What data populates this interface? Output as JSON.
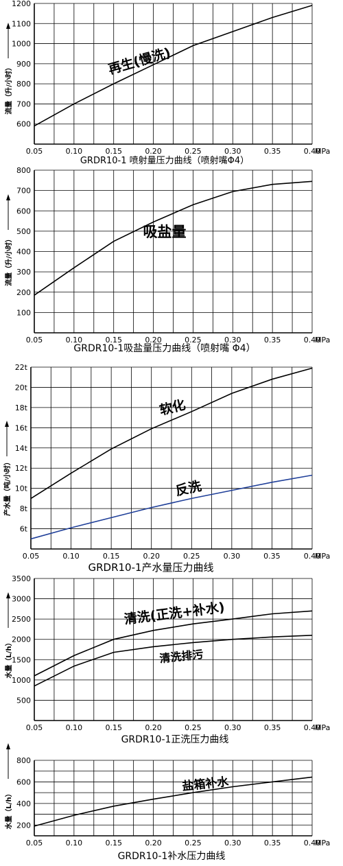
{
  "chart_data": [
    {
      "type": "line",
      "title": "GRDR10-1 喷射量压力曲线（喷射嘴Φ4）",
      "ylabel": "流量（升/小时）",
      "xlabel": "MPa",
      "xlim": [
        0.05,
        0.4
      ],
      "ylim": [
        500,
        1200
      ],
      "x_ticks": [
        "0.05",
        "0.10",
        "0.15",
        "0.20",
        "0.25",
        "0.30",
        "0.35",
        "0.40"
      ],
      "y_ticks": [
        "600",
        "700",
        "800",
        "900",
        "1000",
        "1100",
        "1200"
      ],
      "series": [
        {
          "name": "再生(慢洗)",
          "color": "#000000",
          "x": [
            0.05,
            0.1,
            0.15,
            0.2,
            0.25,
            0.3,
            0.35,
            0.4
          ],
          "y": [
            590,
            700,
            800,
            895,
            990,
            1060,
            1130,
            1190
          ]
        }
      ]
    },
    {
      "type": "line",
      "title": "GRDR10-1吸盐量压力曲线（喷射嘴 Φ4）",
      "ylabel": "流量（升/小时）",
      "xlabel": "MPa",
      "xlim": [
        0.05,
        0.4
      ],
      "ylim": [
        0,
        800
      ],
      "x_ticks": [
        "0.05",
        "0.10",
        "0.15",
        "0.20",
        "0.25",
        "0.30",
        "0.35",
        "0.40"
      ],
      "y_ticks": [
        "100",
        "200",
        "300",
        "400",
        "500",
        "600",
        "700",
        "800"
      ],
      "series": [
        {
          "name": "吸盐量",
          "color": "#000000",
          "x": [
            0.05,
            0.1,
            0.15,
            0.2,
            0.25,
            0.3,
            0.35,
            0.4
          ],
          "y": [
            185,
            320,
            450,
            545,
            630,
            695,
            730,
            745
          ]
        }
      ]
    },
    {
      "type": "line",
      "title": "GRDR10-1产水量压力曲线",
      "ylabel": "产水量（吨/小时）",
      "xlabel": "MPa",
      "xlim": [
        0.05,
        0.4
      ],
      "ylim": [
        4,
        22
      ],
      "x_ticks": [
        "0.05",
        "0.10",
        "0.15",
        "0.20",
        "0.25",
        "0.30",
        "0.35",
        "0.40"
      ],
      "y_ticks": [
        "6t",
        "8t",
        "10t",
        "12t",
        "14t",
        "16t",
        "18t",
        "20t",
        "22t"
      ],
      "series": [
        {
          "name": "软化",
          "color": "#000000",
          "x": [
            0.05,
            0.1,
            0.15,
            0.2,
            0.25,
            0.3,
            0.35,
            0.4
          ],
          "y": [
            9.0,
            11.5,
            13.9,
            15.9,
            17.6,
            19.4,
            20.8,
            21.9
          ]
        },
        {
          "name": "反洗",
          "color": "#1f3f99",
          "x": [
            0.05,
            0.1,
            0.15,
            0.2,
            0.25,
            0.3,
            0.35,
            0.4
          ],
          "y": [
            5.0,
            6.1,
            7.1,
            8.1,
            9.0,
            9.8,
            10.6,
            11.3
          ]
        }
      ]
    },
    {
      "type": "line",
      "title": "GRDR10-1正洗压力曲线",
      "ylabel": "水量（L/h）",
      "xlabel": "MPa",
      "xlim": [
        0.05,
        0.4
      ],
      "ylim": [
        0,
        3500
      ],
      "x_ticks": [
        "0.05",
        "0.10",
        "0.15",
        "0.20",
        "0.25",
        "0.30",
        "0.35",
        "0.40"
      ],
      "y_ticks": [
        "500",
        "1000",
        "1500",
        "2000",
        "2500",
        "3000",
        "3500"
      ],
      "series": [
        {
          "name": "清洗(正洗+补水)",
          "color": "#000000",
          "x": [
            0.05,
            0.1,
            0.15,
            0.2,
            0.25,
            0.3,
            0.35,
            0.4
          ],
          "y": [
            1100,
            1600,
            2000,
            2220,
            2380,
            2500,
            2630,
            2700
          ]
        },
        {
          "name": "清洗排污",
          "color": "#000000",
          "x": [
            0.05,
            0.1,
            0.15,
            0.2,
            0.25,
            0.3,
            0.35,
            0.4
          ],
          "y": [
            850,
            1340,
            1680,
            1820,
            1920,
            2000,
            2060,
            2100
          ]
        }
      ]
    },
    {
      "type": "line",
      "title": "GRDR10-1补水压力曲线",
      "ylabel": "水量（L/h）",
      "xlabel": "MPa",
      "xlim": [
        0.05,
        0.4
      ],
      "ylim": [
        100,
        800
      ],
      "x_ticks": [
        "0.05",
        "0.10",
        "0.15",
        "0.20",
        "0.25",
        "0.30",
        "0.35",
        "0.40"
      ],
      "y_ticks": [
        "200",
        "400",
        "600",
        "800"
      ],
      "series": [
        {
          "name": "盐箱补水",
          "color": "#000000",
          "x": [
            0.05,
            0.1,
            0.15,
            0.2,
            0.25,
            0.3,
            0.35,
            0.4
          ],
          "y": [
            190,
            290,
            375,
            440,
            500,
            555,
            600,
            645
          ]
        }
      ]
    }
  ]
}
